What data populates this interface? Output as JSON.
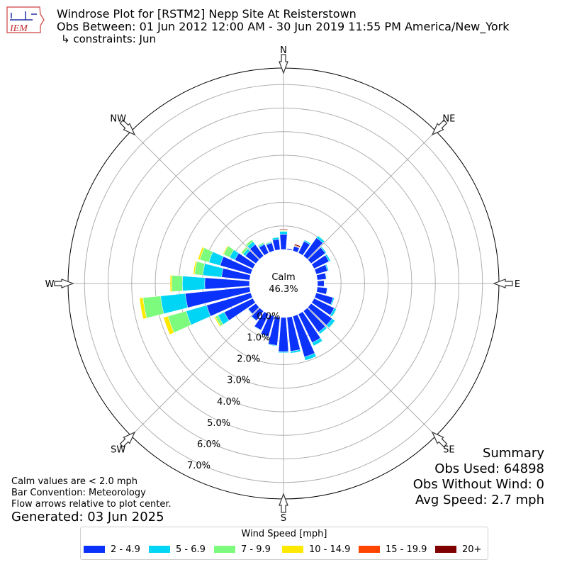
{
  "header": {
    "title": "Windrose Plot for [RSTM2] Nepp Site At Reisterstown",
    "subtitle": "Obs Between: 01 Jun 2012 12:00 AM - 30 Jun 2019 11:55 PM America/New_York",
    "constraints": "↳ constraints: Jun",
    "logo_text": "IEM"
  },
  "notes": {
    "calm_def": "Calm values are < 2.0 mph",
    "bar_convention": "Bar Convention: Meteorology",
    "flow_arrows": "Flow arrows relative to plot center.",
    "generated": "Generated: 03 Jun 2025"
  },
  "summary": {
    "heading": "Summary",
    "obs_used": "Obs Used: 64898",
    "obs_without_wind": "Obs Without Wind: 0",
    "avg_speed": "Avg Speed: 2.7 mph"
  },
  "legend": {
    "title": "Wind Speed [mph]",
    "items": [
      {
        "label": "2 - 4.9",
        "color": "#0b32fa"
      },
      {
        "label": "5 - 6.9",
        "color": "#00d5f5"
      },
      {
        "label": "7 - 9.9",
        "color": "#7dfb7d"
      },
      {
        "label": "10 - 14.9",
        "color": "#fde800"
      },
      {
        "label": "15 - 19.9",
        "color": "#ff4500"
      },
      {
        "label": "20+",
        "color": "#800000"
      }
    ]
  },
  "chart_data": {
    "type": "windrose",
    "calm_label": "Calm",
    "calm_value": "46.3%",
    "compass_labels": [
      "N",
      "NE",
      "E",
      "SE",
      "S",
      "SW",
      "W",
      "NW"
    ],
    "radial_tick_labels": [
      "0.0%",
      "1.0%",
      "2.0%",
      "3.0%",
      "4.0%",
      "5.0%",
      "6.0%",
      "7.0%"
    ],
    "r_max_percent": 7.7,
    "bin_directions_deg": [
      0,
      10,
      20,
      30,
      40,
      50,
      60,
      70,
      80,
      90,
      100,
      110,
      120,
      130,
      140,
      150,
      160,
      170,
      180,
      190,
      200,
      210,
      220,
      230,
      240,
      250,
      260,
      270,
      280,
      290,
      300,
      310,
      320,
      330,
      340,
      350
    ],
    "series": [
      {
        "name": "2 - 4.9",
        "values": [
          0.65,
          0.05,
          0.2,
          0.55,
          0.95,
          0.75,
          0.7,
          0.5,
          0.38,
          0.28,
          0.42,
          0.75,
          0.95,
          1.1,
          1.1,
          1.35,
          1.8,
          1.45,
          1.45,
          1.2,
          0.9,
          0.75,
          0.5,
          0.4,
          1.35,
          1.95,
          2.75,
          1.9,
          1.2,
          1.35,
          0.85,
          0.55,
          0.6,
          0.4,
          0.35,
          0.45
        ]
      },
      {
        "name": "5 - 6.9",
        "values": [
          0.12,
          0.0,
          0.02,
          0.06,
          0.1,
          0.05,
          0.07,
          0.05,
          0.02,
          0.02,
          0.02,
          0.05,
          0.1,
          0.15,
          0.1,
          0.15,
          0.15,
          0.08,
          0.05,
          0.03,
          0.02,
          0.02,
          0.02,
          0.02,
          0.3,
          0.9,
          1.05,
          0.95,
          0.8,
          0.5,
          0.25,
          0.12,
          0.15,
          0.05,
          0.04,
          0.08
        ]
      },
      {
        "name": "7 - 9.9",
        "values": [
          0.03,
          0.0,
          0.0,
          0.01,
          0.02,
          0.0,
          0.0,
          0.0,
          0.0,
          0.0,
          0.0,
          0.0,
          0.02,
          0.02,
          0.01,
          0.01,
          0.0,
          0.0,
          0.0,
          0.0,
          0.0,
          0.0,
          0.0,
          0.0,
          0.12,
          0.8,
          0.75,
          0.45,
          0.35,
          0.4,
          0.28,
          0.1,
          0.1,
          0.05,
          0.03,
          0.02
        ]
      },
      {
        "name": "10 - 14.9",
        "values": [
          0.02,
          0.0,
          0.0,
          0.0,
          0.0,
          0.0,
          0.0,
          0.0,
          0.0,
          0.0,
          0.0,
          0.0,
          0.0,
          0.0,
          0.0,
          0.0,
          0.0,
          0.0,
          0.0,
          0.0,
          0.0,
          0.0,
          0.0,
          0.0,
          0.05,
          0.2,
          0.15,
          0.07,
          0.06,
          0.08,
          0.04,
          0.02,
          0.01,
          0.0,
          0.0,
          0.0
        ]
      },
      {
        "name": "15 - 19.9",
        "values": [
          0.02,
          0.0,
          0.03,
          0.0,
          0.0,
          0.0,
          0.0,
          0.0,
          0.0,
          0.0,
          0.0,
          0.0,
          0.0,
          0.0,
          0.0,
          0.0,
          0.0,
          0.0,
          0.0,
          0.0,
          0.0,
          0.0,
          0.0,
          0.0,
          0.0,
          0.0,
          0.0,
          0.0,
          0.0,
          0.0,
          0.0,
          0.0,
          0.0,
          0.0,
          0.0,
          0.0
        ]
      },
      {
        "name": "20+",
        "values": [
          0.03,
          0.0,
          0.05,
          0.0,
          0.0,
          0.0,
          0.0,
          0.0,
          0.0,
          0.0,
          0.0,
          0.0,
          0.0,
          0.0,
          0.0,
          0.0,
          0.0,
          0.0,
          0.0,
          0.0,
          0.0,
          0.0,
          0.0,
          0.0,
          0.0,
          0.0,
          0.0,
          0.0,
          0.0,
          0.0,
          0.0,
          0.0,
          0.0,
          0.0,
          0.0,
          0.0
        ]
      }
    ]
  }
}
